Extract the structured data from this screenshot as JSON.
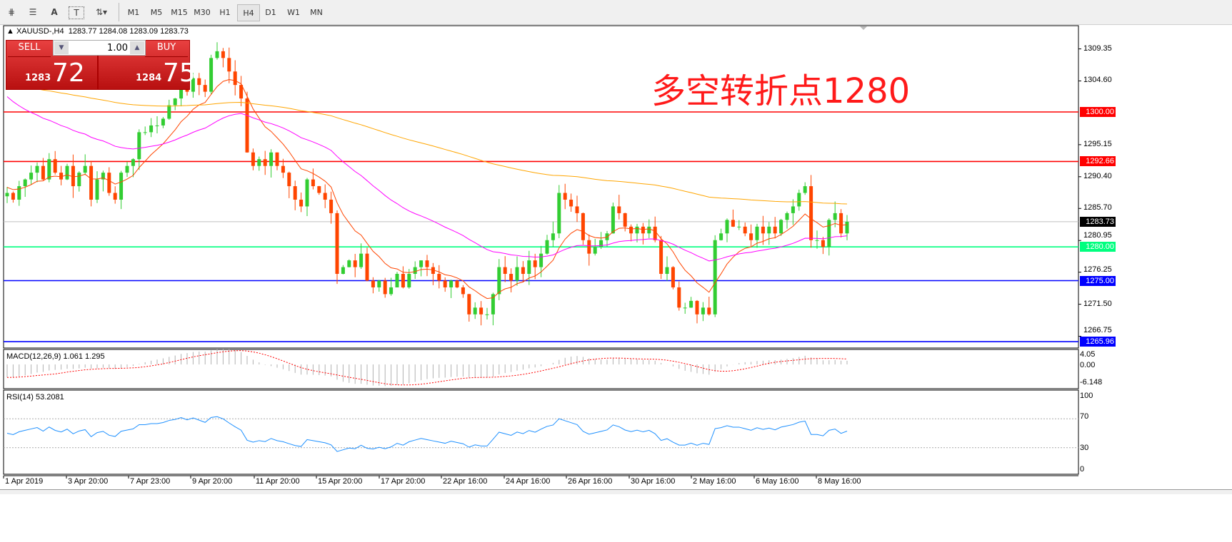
{
  "toolbar": {
    "tools": [
      {
        "icon": "elliott-wave-icon"
      },
      {
        "icon": "fibonacci-icon"
      },
      {
        "icon": "text-icon",
        "label": "A"
      },
      {
        "icon": "text-label-icon",
        "label": "T"
      },
      {
        "icon": "arrows-icon"
      }
    ],
    "timeframes": [
      "M1",
      "M5",
      "M15",
      "M30",
      "H1",
      "H4",
      "D1",
      "W1",
      "MN"
    ],
    "active_timeframe": "H4"
  },
  "header": {
    "symbol": "XAUUSD-,H4",
    "ohlc": "1283.77 1284.08 1283.09 1283.73"
  },
  "trade_panel": {
    "sell_label": "SELL",
    "buy_label": "BUY",
    "lot": "1.00",
    "sell_prefix": "1283",
    "sell_big": "72",
    "buy_prefix": "1284",
    "buy_big": "75"
  },
  "annotation": "多空转折点1280",
  "price_axis": [
    "1309.35",
    "1304.60",
    "1295.15",
    "1290.40",
    "1285.70",
    "1280.95",
    "1276.25",
    "1271.50",
    "1266.75"
  ],
  "levels": [
    {
      "price": 1300.0,
      "label": "1300.00",
      "color": "#ff0000"
    },
    {
      "price": 1292.66,
      "label": "1292.66",
      "color": "#ff0000"
    },
    {
      "price": 1283.73,
      "label": "1283.73",
      "color": "#000000",
      "line": "#c0c0c0"
    },
    {
      "price": 1280.0,
      "label": "1280.00",
      "color": "#00ff7f"
    },
    {
      "price": 1275.0,
      "label": "1275.00",
      "color": "#0000ff"
    },
    {
      "price": 1265.96,
      "label": "1265.96",
      "color": "#0000ff"
    }
  ],
  "colors": {
    "bull": "#32cd32",
    "bear": "#ff4500",
    "ma_fast": "#ff4500",
    "ma_mid": "#ff00ff",
    "ma_slow": "#ffa500",
    "rsi": "#1e90ff",
    "macd_signal": "#ff0000"
  },
  "closes": [
    1288,
    1287,
    1289,
    1290,
    1291,
    1292,
    1290,
    1293,
    1291,
    1290,
    1292,
    1289,
    1291,
    1292,
    1287,
    1290,
    1291,
    1288,
    1287,
    1291,
    1292,
    1293,
    1297,
    1297,
    1298,
    1298,
    1299,
    1301,
    1302,
    1304,
    1303,
    1305,
    1304,
    1303,
    1308,
    1309,
    1308,
    1306,
    1304,
    1302,
    1294,
    1292,
    1293,
    1292,
    1294,
    1292,
    1291,
    1289,
    1287,
    1286,
    1290,
    1289,
    1288,
    1287,
    1285,
    1276,
    1277,
    1278,
    1277,
    1279,
    1275,
    1274,
    1275,
    1273,
    1274,
    1276,
    1274,
    1276,
    1277,
    1278,
    1277,
    1276,
    1275,
    1274,
    1275,
    1274,
    1273,
    1270,
    1271,
    1270,
    1270,
    1273,
    1277,
    1276,
    1275,
    1277,
    1276,
    1278,
    1277,
    1279,
    1281,
    1282,
    1288,
    1287,
    1286,
    1285,
    1281,
    1279,
    1280,
    1281,
    1282,
    1286,
    1285,
    1283,
    1282,
    1283,
    1282,
    1283,
    1281,
    1276,
    1277,
    1274,
    1271,
    1271,
    1272,
    1270,
    1271,
    1270,
    1281,
    1282,
    1284,
    1283,
    1283,
    1282,
    1281,
    1283,
    1282,
    1283,
    1282,
    1284,
    1285,
    1286,
    1288,
    1289,
    1281,
    1281,
    1280,
    1284,
    1285,
    1282,
    1283.73
  ],
  "macd": {
    "label": "MACD(12,26,9) 1.061 1.295",
    "axis": [
      "4.05",
      "0.00",
      "-6.148"
    ]
  },
  "rsi": {
    "label": "RSI(14) 53.2081",
    "axis": [
      "100",
      "70",
      "30",
      "0"
    ]
  },
  "dates": [
    "1 Apr 2019",
    "3 Apr 20:00",
    "7 Apr 23:00",
    "9 Apr 20:00",
    "11 Apr 20:00",
    "15 Apr 20:00",
    "17 Apr 20:00",
    "22 Apr 16:00",
    "24 Apr 16:00",
    "26 Apr 16:00",
    "30 Apr 16:00",
    "2 May 16:00",
    "6 May 16:00",
    "8 May 16:00"
  ]
}
